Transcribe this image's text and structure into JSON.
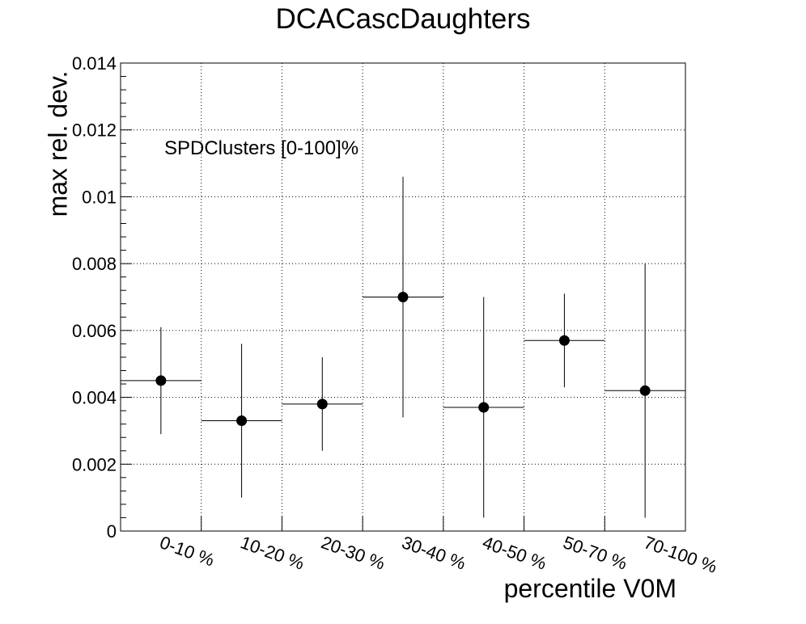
{
  "chart_data": {
    "type": "scatter",
    "title": "DCACascDaughters",
    "xlabel": "percentile V0M",
    "ylabel": "max rel. dev.",
    "annotation": "SPDClusters [0-100]%",
    "categories": [
      "0-10 %",
      "10-20 %",
      "20-30 %",
      "30-40 %",
      "40-50 %",
      "50-70 %",
      "70-100 %"
    ],
    "values": [
      0.0045,
      0.0033,
      0.0038,
      0.007,
      0.0037,
      0.0057,
      0.0042
    ],
    "errors": [
      0.0016,
      0.0023,
      0.0014,
      0.0036,
      0.0033,
      0.0014,
      0.0038
    ],
    "ylim": [
      0,
      0.014
    ],
    "yticks": [
      "0",
      "0.002",
      "0.004",
      "0.006",
      "0.008",
      "0.01",
      "0.012",
      "0.014"
    ],
    "grid": true,
    "marker_color": "#000000"
  }
}
